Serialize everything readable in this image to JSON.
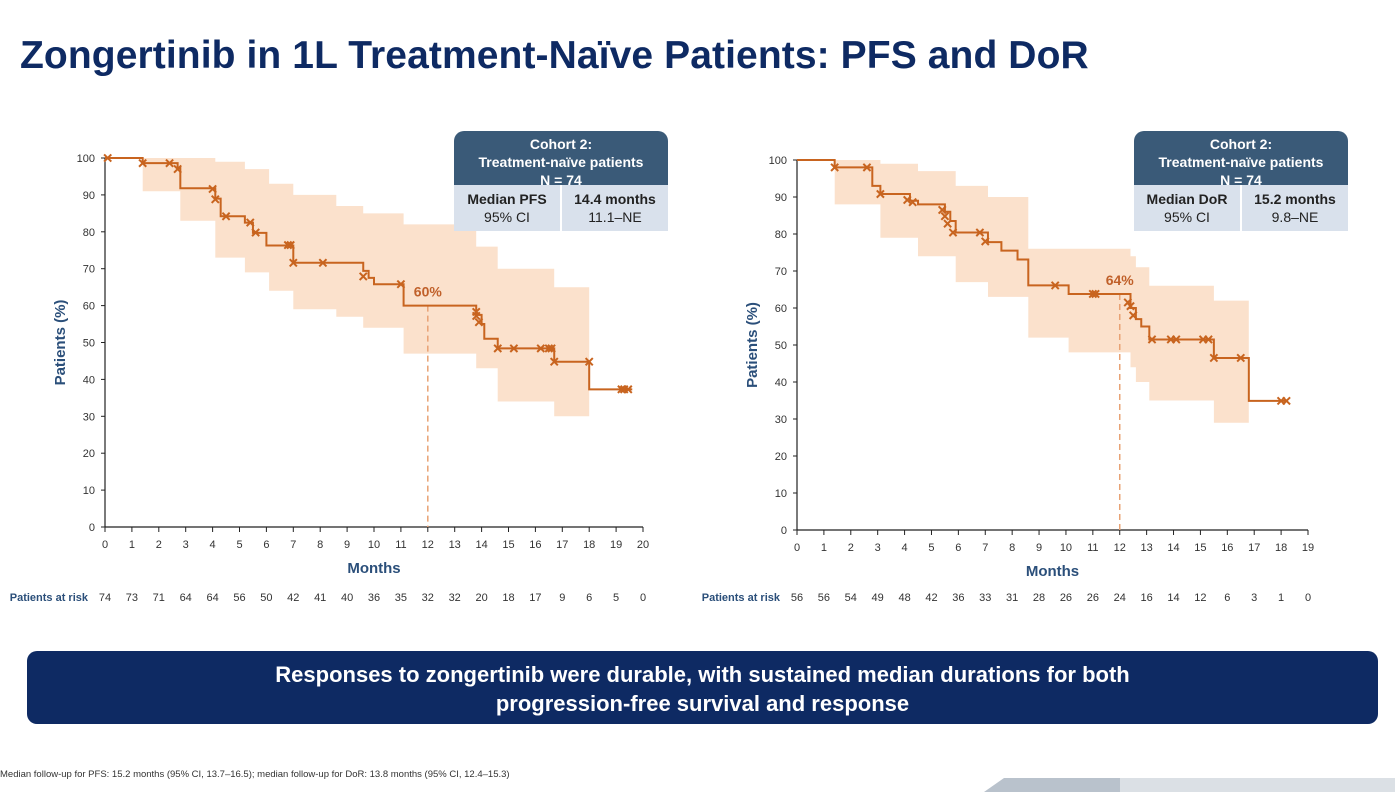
{
  "title": "Zongertinib in 1L Treatment-Naïve Patients: PFS and DoR",
  "colors": {
    "navy": "#0e2a63",
    "curve": "#c8641f",
    "ci_band": "#fbe1cc",
    "box_header": "#3a5a78",
    "box_body": "#d9e1ec"
  },
  "chart_data": [
    {
      "id": "pfs",
      "type": "line",
      "subtype": "kaplan-meier",
      "xlabel": "Months",
      "ylabel": "Patients (%)",
      "xlim": [
        0,
        20
      ],
      "ylim": [
        0,
        100
      ],
      "x_ticks": [
        "0",
        "1",
        "2",
        "3",
        "4",
        "5",
        "6",
        "7",
        "8",
        "9",
        "10",
        "11",
        "12",
        "13",
        "14",
        "15",
        "16",
        "17",
        "18",
        "19",
        "20"
      ],
      "y_ticks": [
        "0",
        "10",
        "20",
        "30",
        "40",
        "50",
        "60",
        "70",
        "80",
        "90",
        "100"
      ],
      "steps": [
        [
          0,
          100
        ],
        [
          1.4,
          98.6
        ],
        [
          2.5,
          98.6
        ],
        [
          2.7,
          97.3
        ],
        [
          2.8,
          91.8
        ],
        [
          4.1,
          91.8
        ],
        [
          4.1,
          89
        ],
        [
          4.3,
          84.2
        ],
        [
          5.2,
          82.5
        ],
        [
          5.5,
          79.7
        ],
        [
          6,
          76.3
        ],
        [
          6.9,
          76.3
        ],
        [
          7,
          71.6
        ],
        [
          9.6,
          69.4
        ],
        [
          9.8,
          67.5
        ],
        [
          10,
          65.8
        ],
        [
          11,
          65.8
        ],
        [
          11.1,
          60
        ],
        [
          13.7,
          60
        ],
        [
          13.8,
          57.5
        ],
        [
          14,
          55
        ],
        [
          14.1,
          51
        ],
        [
          14.6,
          48.4
        ],
        [
          16.6,
          48.4
        ],
        [
          16.7,
          44.8
        ],
        [
          18,
          44.8
        ],
        [
          18,
          37.3
        ],
        [
          19.6,
          37.3
        ]
      ],
      "censor": [
        [
          0.1,
          100
        ],
        [
          1.4,
          98.6
        ],
        [
          2.4,
          98.6
        ],
        [
          2.7,
          97
        ],
        [
          4,
          91.6
        ],
        [
          4.1,
          88.8
        ],
        [
          4.5,
          84.2
        ],
        [
          5.4,
          82.5
        ],
        [
          5.6,
          79.8
        ],
        [
          6.8,
          76.4
        ],
        [
          6.9,
          76.4
        ],
        [
          7,
          71.6
        ],
        [
          8.1,
          71.6
        ],
        [
          9.6,
          67.9
        ],
        [
          11,
          65.8
        ],
        [
          13.8,
          58.3
        ],
        [
          13.8,
          57.2
        ],
        [
          13.9,
          55.5
        ],
        [
          14.6,
          48.4
        ],
        [
          15.2,
          48.4
        ],
        [
          16.2,
          48.4
        ],
        [
          16.5,
          48.4
        ],
        [
          16.6,
          48.4
        ],
        [
          16.7,
          44.8
        ],
        [
          18,
          44.8
        ],
        [
          19.2,
          37.3
        ],
        [
          19.3,
          37.3
        ],
        [
          19.45,
          37.3
        ]
      ],
      "ci_upper": [
        [
          0,
          100
        ],
        [
          1.4,
          100
        ],
        [
          2.8,
          100
        ],
        [
          4.1,
          99
        ],
        [
          5.2,
          97
        ],
        [
          6.1,
          93
        ],
        [
          7,
          90
        ],
        [
          8.6,
          87
        ],
        [
          9.6,
          85
        ],
        [
          11.1,
          82
        ],
        [
          13.8,
          76
        ],
        [
          14.6,
          70
        ],
        [
          16.7,
          65
        ],
        [
          18,
          0
        ]
      ],
      "ci_lower": [
        [
          0,
          100
        ],
        [
          1.4,
          91
        ],
        [
          2.8,
          83
        ],
        [
          4.1,
          73
        ],
        [
          5.2,
          69
        ],
        [
          6.1,
          64
        ],
        [
          7,
          59
        ],
        [
          8.6,
          57
        ],
        [
          9.6,
          54
        ],
        [
          11.1,
          47
        ],
        [
          13.8,
          43
        ],
        [
          14.6,
          34
        ],
        [
          16.7,
          30
        ],
        [
          18,
          0
        ]
      ],
      "ci_end": 18,
      "median_line_x": 12,
      "median_line_y": 60,
      "annotation": "60%",
      "at_risk_label": "Patients at risk",
      "at_risk": [
        "74",
        "73",
        "71",
        "64",
        "64",
        "56",
        "50",
        "42",
        "41",
        "40",
        "36",
        "35",
        "32",
        "32",
        "20",
        "18",
        "17",
        "9",
        "6",
        "5",
        "0"
      ]
    },
    {
      "id": "dor",
      "type": "line",
      "subtype": "kaplan-meier",
      "xlabel": "Months",
      "ylabel": "Patients (%)",
      "xlim": [
        0,
        19
      ],
      "ylim": [
        0,
        100
      ],
      "x_ticks": [
        "0",
        "1",
        "2",
        "3",
        "4",
        "5",
        "6",
        "7",
        "8",
        "9",
        "10",
        "11",
        "12",
        "13",
        "14",
        "15",
        "16",
        "17",
        "18",
        "19"
      ],
      "y_ticks": [
        "0",
        "10",
        "20",
        "30",
        "40",
        "50",
        "60",
        "70",
        "80",
        "90",
        "100"
      ],
      "steps": [
        [
          0,
          100
        ],
        [
          1.4,
          98
        ],
        [
          2.6,
          98
        ],
        [
          2.8,
          93
        ],
        [
          3.1,
          90.8
        ],
        [
          4.2,
          89
        ],
        [
          4.5,
          88
        ],
        [
          5.5,
          86
        ],
        [
          5.7,
          83.5
        ],
        [
          5.9,
          80.4
        ],
        [
          6.9,
          80.4
        ],
        [
          7.1,
          77.8
        ],
        [
          7.6,
          75.5
        ],
        [
          8.2,
          73.1
        ],
        [
          8.6,
          66.1
        ],
        [
          9.9,
          66.1
        ],
        [
          10.1,
          63.8
        ],
        [
          12.3,
          63.8
        ],
        [
          12.4,
          60
        ],
        [
          12.6,
          57
        ],
        [
          12.8,
          55
        ],
        [
          13.1,
          51.5
        ],
        [
          15.3,
          51.5
        ],
        [
          15.5,
          46.5
        ],
        [
          16.7,
          46.5
        ],
        [
          16.8,
          34.9
        ],
        [
          18.2,
          34.9
        ]
      ],
      "censor": [
        [
          1.4,
          98
        ],
        [
          2.6,
          98
        ],
        [
          3.1,
          90.8
        ],
        [
          4.1,
          89.2
        ],
        [
          4.3,
          88.6
        ],
        [
          5.4,
          86.5
        ],
        [
          5.5,
          84.8
        ],
        [
          5.6,
          82.8
        ],
        [
          5.8,
          80.4
        ],
        [
          6.8,
          80.4
        ],
        [
          7,
          78
        ],
        [
          9.6,
          66.1
        ],
        [
          11.0,
          63.8
        ],
        [
          11.1,
          63.8
        ],
        [
          12.3,
          61.5
        ],
        [
          12.4,
          60.5
        ],
        [
          12.5,
          58
        ],
        [
          13.2,
          51.5
        ],
        [
          13.9,
          51.5
        ],
        [
          14.1,
          51.5
        ],
        [
          15.1,
          51.5
        ],
        [
          15.3,
          51.5
        ],
        [
          15.5,
          46.5
        ],
        [
          16.5,
          46.5
        ],
        [
          18.0,
          34.9
        ],
        [
          18.2,
          34.9
        ]
      ],
      "ci_upper": [
        [
          0,
          100
        ],
        [
          1.4,
          100
        ],
        [
          3.1,
          99
        ],
        [
          4.5,
          97
        ],
        [
          5.9,
          93
        ],
        [
          7.1,
          90
        ],
        [
          8.6,
          76
        ],
        [
          10.1,
          76
        ],
        [
          12.4,
          74
        ],
        [
          12.6,
          71
        ],
        [
          13.1,
          66
        ],
        [
          15.5,
          62
        ],
        [
          16.8,
          0
        ]
      ],
      "ci_lower": [
        [
          0,
          100
        ],
        [
          1.4,
          88
        ],
        [
          3.1,
          79
        ],
        [
          4.5,
          74
        ],
        [
          5.9,
          67
        ],
        [
          7.1,
          63
        ],
        [
          8.6,
          52
        ],
        [
          10.1,
          48
        ],
        [
          12.4,
          44
        ],
        [
          12.6,
          40
        ],
        [
          13.1,
          35
        ],
        [
          15.5,
          29
        ],
        [
          16.8,
          0
        ]
      ],
      "ci_end": 16.8,
      "median_line_x": 12,
      "median_line_y": 63.8,
      "annotation": "64%",
      "at_risk_label": "Patients at risk",
      "at_risk": [
        "56",
        "56",
        "54",
        "49",
        "48",
        "42",
        "36",
        "33",
        "31",
        "28",
        "26",
        "26",
        "24",
        "16",
        "14",
        "12",
        "6",
        "3",
        "1",
        "0"
      ]
    }
  ],
  "pfs_box": {
    "header": [
      "Cohort 2:",
      "Treatment-naïve patients",
      "N = 74"
    ],
    "col1_line1": "Median PFS",
    "col1_line2": "95% CI",
    "col2_line1": "14.4 months",
    "col2_line2": "11.1–NE"
  },
  "dor_box": {
    "header": [
      "Cohort 2:",
      "Treatment-naïve patients",
      "N = 74"
    ],
    "col1_line1": "Median DoR",
    "col1_line2": "95% CI",
    "col2_line1": "15.2 months",
    "col2_line2": "9.8–NE"
  },
  "banner": {
    "line1": "Responses to zongertinib were durable, with sustained median durations for both",
    "line2": "progression-free survival and response"
  },
  "footnote": "Median follow-up for PFS: 15.2 months (95% CI, 13.7–16.5); median follow-up for DoR: 13.8 months (95% CI, 12.4–15.3)"
}
